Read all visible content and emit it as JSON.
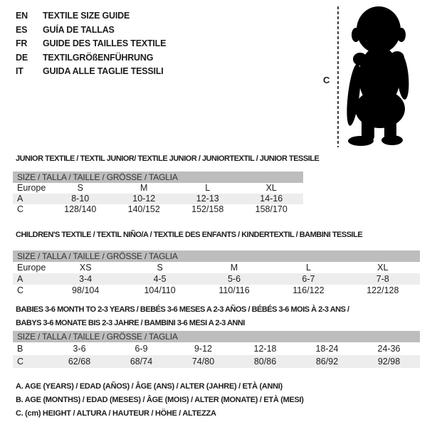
{
  "colors": {
    "page_bg": "#ffffff",
    "header_bar_bg": "#bdbdbd",
    "shaded_row_bg": "#ededed",
    "text": "#1d1d1b",
    "bar_text": "#333333",
    "dash_line": "#3c3c3c",
    "silhouette": "#000000"
  },
  "language_guide": {
    "items": [
      {
        "code": "EN",
        "label": "TEXTILE SIZE GUIDE"
      },
      {
        "code": "ES",
        "label": "GUÍA DE TALLAS"
      },
      {
        "code": "FR",
        "label": "GUIDE DES TAILLES TEXTILE"
      },
      {
        "code": "DE",
        "label": "TEXTILGRÖßENFÜHRUNG"
      },
      {
        "code": "IT",
        "label": "GUIDA ALLE TAGLIE TESSILI"
      }
    ]
  },
  "figure": {
    "measure_label": "C",
    "silhouette": "baby-silhouette"
  },
  "sections": [
    {
      "title_lines": [
        "JUNIOR TEXTILE / TEXTIL JUNIOR/ TEXTILE JUNIOR / JUNIORTEXTIL / JUNIOR TESSILE"
      ],
      "size_header": "SIZE / TALLA / TAILLE / GRÖSSE / TAGLIA",
      "rows": [
        {
          "label": "Europe",
          "values": [
            "S",
            "M",
            "L",
            "XL"
          ],
          "shaded": false
        },
        {
          "label": "A",
          "values": [
            "8-10",
            "10-12",
            "12-13",
            "14-16"
          ],
          "shaded": true
        },
        {
          "label": "C",
          "values": [
            "128/140",
            "140/152",
            "152/158",
            "158/170"
          ],
          "shaded": false
        }
      ]
    },
    {
      "title_lines": [
        "CHILDREN'S TEXTILE / TEXTIL NIÑO/A / TEXTILE DES ENFANTS / KINDERTEXTIL / BAMBINI TESSILE"
      ],
      "size_header": "SIZE / TALLA / TAILLE / GRÖSSE / TAGLIA",
      "rows": [
        {
          "label": "Europe",
          "values": [
            "XS",
            "S",
            "M",
            "L",
            "XL"
          ],
          "shaded": false
        },
        {
          "label": "A",
          "values": [
            "3-4",
            "4-5",
            "5-6",
            "6-7",
            "7-8"
          ],
          "shaded": true
        },
        {
          "label": "C",
          "values": [
            "98/104",
            "104/110",
            "110/116",
            "116/122",
            "122/128"
          ],
          "shaded": false
        }
      ]
    },
    {
      "title_lines": [
        "BABIES 3-6 MONTH TO 2-3 YEARS / BEBÉS 3-6 MESES A 2-3 AÑOS / BÉBÉS 3-6 MOIS À 2-3 ANS /",
        "BABYS 3-6 MONATE BIS 2-3 JAHRE / BAMBINI 3-6 MESI A 2-3 ANNI"
      ],
      "size_header": "SIZE / TALLA / TAILLE / GRÖSSE / TAGLIA",
      "rows": [
        {
          "label": "B",
          "values": [
            "3-6",
            "6-9",
            "9-12",
            "12-18",
            "18-24",
            "24-36"
          ],
          "shaded": false
        },
        {
          "label": "C",
          "values": [
            "62/68",
            "68/74",
            "74/80",
            "80/86",
            "86/92",
            "92/98"
          ],
          "shaded": true
        }
      ]
    }
  ],
  "footnotes": [
    "A. AGE (YEARS) / EDAD (AÑOS) / ÂGE (ANS) / ALTER (JAHRE) / ETÀ (ANNI)",
    "B. AGE (MONTHS) / EDAD (MESES) / ÂGE (MOIS) / ALTER (MONATE) / ETÀ (MESI)",
    "C. (cm) HEIGHT / ALTURA / HAUTEUR / HÖHE / ALTEZZA"
  ]
}
